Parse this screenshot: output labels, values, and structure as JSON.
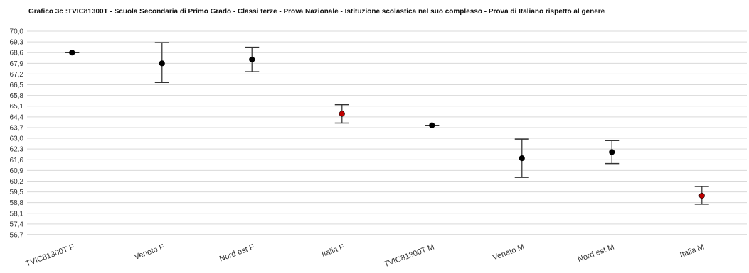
{
  "chart_data": {
    "type": "scatter",
    "title": "Grafico 3c :TVIC81300T - Scuola Secondaria di Primo Grado - Classi terze - Prova Nazionale - Istituzione scolastica nel suo complesso - Prova di Italiano rispetto al genere",
    "xlabel": "",
    "ylabel": "",
    "ylim": [
      56.7,
      70.0
    ],
    "yticks": [
      "70,0",
      "69,3",
      "68,6",
      "67,9",
      "67,2",
      "66,5",
      "65,8",
      "65,1",
      "64,4",
      "63,7",
      "63,0",
      "62,3",
      "61,6",
      "60,9",
      "60,2",
      "59,5",
      "58,8",
      "58,1",
      "57,4",
      "56,7"
    ],
    "grid": true,
    "categories": [
      "TVIC81300T F",
      "Veneto F",
      "Nord est F",
      "Italia F",
      "TVIC81300T M",
      "Veneto M",
      "Nord est M",
      "Italia M"
    ],
    "values": [
      68.6,
      67.9,
      68.15,
      64.6,
      63.85,
      61.7,
      62.1,
      59.25
    ],
    "lower": [
      68.6,
      66.65,
      67.35,
      64.0,
      63.85,
      60.45,
      61.35,
      58.7
    ],
    "upper": [
      68.6,
      69.25,
      68.95,
      65.2,
      63.85,
      62.95,
      62.85,
      59.85
    ],
    "colors": [
      "#000000",
      "#000000",
      "#000000",
      "#c00000",
      "#000000",
      "#000000",
      "#000000",
      "#c00000"
    ],
    "errorbar_color": "#555555",
    "grid_color": "#d9d9d9"
  }
}
